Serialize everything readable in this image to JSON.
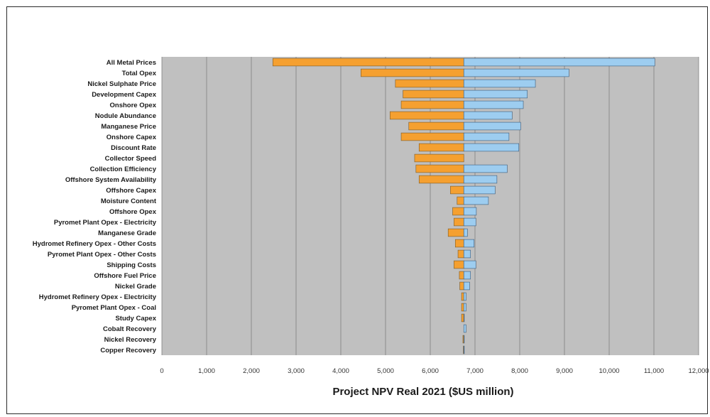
{
  "chart_data": {
    "type": "bar",
    "orientation": "horizontal",
    "variant": "tornado",
    "title": "",
    "xlabel": "Project NPV Real 2021 ($US million)",
    "ylabel": "",
    "xlim": [
      0,
      12000
    ],
    "xticks": [
      0,
      1000,
      2000,
      3000,
      4000,
      5000,
      6000,
      7000,
      8000,
      9000,
      10000,
      11000,
      12000
    ],
    "xtick_labels": [
      "0",
      "1,000",
      "2,000",
      "3,000",
      "4,000",
      "5,000",
      "6,000",
      "7,000",
      "8,000",
      "9,000",
      "10,000",
      "11,000",
      "12,000"
    ],
    "base": 6750,
    "grid": "vertical",
    "legend": "none",
    "colors": {
      "low": "#f5a030",
      "high": "#9dcdf0",
      "plot_background": "#c0c0c0",
      "gridline": "#808080"
    },
    "categories": [
      "All Metal Prices",
      "Total Opex",
      "Nickel Sulphate Price",
      "Development Capex",
      "Onshore Opex",
      "Nodule Abundance",
      "Manganese Price",
      "Onshore Capex",
      "Discount Rate",
      "Collector Speed",
      "Collection Efficiency",
      "Offshore System Availability",
      "Offshore Capex",
      "Moisture Content",
      "Offshore Opex",
      "Pyromet Plant Opex - Electricity",
      "Manganese Grade",
      "Hydromet Refinery Opex - Other Costs",
      "Pyromet Plant Opex - Other Costs",
      "Shipping Costs",
      "Offshore Fuel Price",
      "Nickel Grade",
      "Hydromet Refinery Opex - Electricity",
      "Pyromet Plant Opex - Coal",
      "Study Capex",
      "Cobalt Recovery",
      "Nickel Recovery",
      "Copper Recovery"
    ],
    "series": [
      {
        "values": [
          2480,
          4450,
          5220,
          5390,
          5350,
          5100,
          5520,
          5350,
          5750,
          5650,
          5680,
          5750,
          6450,
          6600,
          6500,
          6530,
          6400,
          6560,
          6620,
          6530,
          6650,
          6660,
          6700,
          6700,
          6700,
          6750,
          6730,
          6740
        ]
      },
      {
        "values": [
          11020,
          9100,
          8350,
          8170,
          8080,
          7830,
          8020,
          7760,
          7980,
          6750,
          7720,
          7490,
          7450,
          7300,
          7030,
          7020,
          6830,
          6980,
          6900,
          7020,
          6900,
          6880,
          6800,
          6800,
          6760,
          6800,
          6760,
          6760
        ]
      }
    ]
  }
}
